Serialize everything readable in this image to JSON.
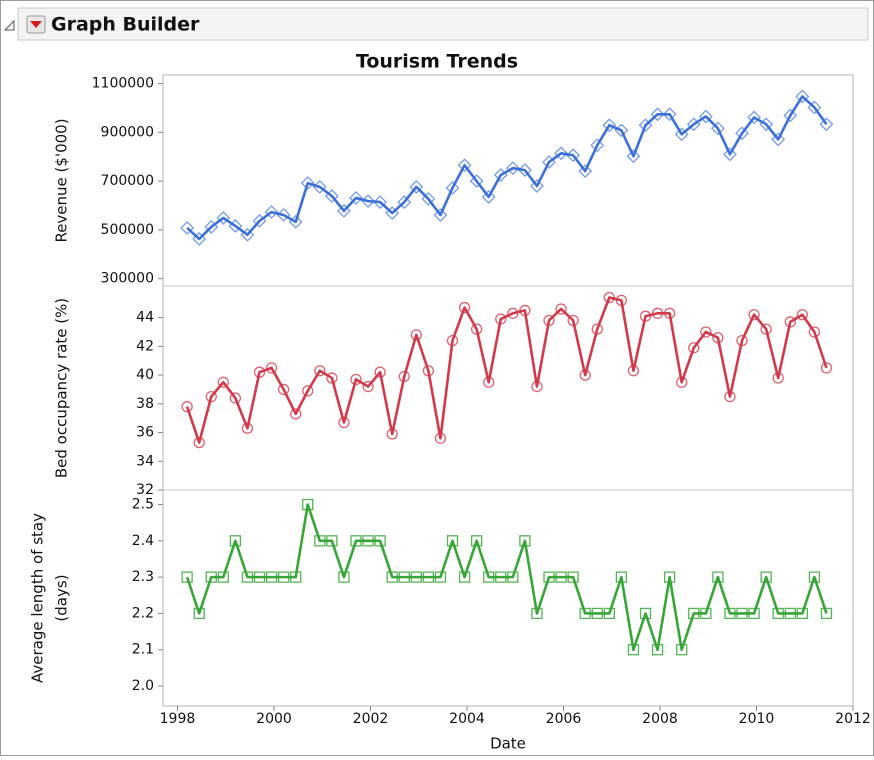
{
  "header": {
    "title": "Graph Builder"
  },
  "chart_data": {
    "type": "line",
    "title": "Tourism Trends",
    "xlabel": "Date",
    "x": [
      1998.2,
      1998.45,
      1998.7,
      1998.95,
      1999.2,
      1999.45,
      1999.7,
      1999.95,
      2000.2,
      2000.45,
      2000.7,
      2000.95,
      2001.2,
      2001.45,
      2001.7,
      2001.95,
      2002.2,
      2002.45,
      2002.7,
      2002.95,
      2003.2,
      2003.45,
      2003.7,
      2003.95,
      2004.2,
      2004.45,
      2004.7,
      2004.95,
      2005.2,
      2005.45,
      2005.7,
      2005.95,
      2006.2,
      2006.45,
      2006.7,
      2006.95,
      2007.2,
      2007.45,
      2007.7,
      2007.95,
      2008.2,
      2008.45,
      2008.7,
      2008.95,
      2009.2,
      2009.45,
      2009.7,
      2009.95,
      2010.2,
      2010.45,
      2010.7,
      2010.95,
      2011.2,
      2011.45
    ],
    "xlim": [
      1997.7,
      2012
    ],
    "xticks": [
      1998,
      2000,
      2002,
      2004,
      2006,
      2008,
      2010,
      2012
    ],
    "panels": [
      {
        "ylabel": [
          "Revenue ($'000)"
        ],
        "ylim": [
          270000,
          1135000
        ],
        "yticks": [
          300000,
          500000,
          700000,
          900000,
          1100000
        ],
        "series": [
          {
            "color": "#3b6fd9",
            "marker": "diamond",
            "values": [
              508000,
              463000,
              512000,
              549000,
              516000,
              480000,
              537000,
              573000,
              561000,
              533000,
              692000,
              676000,
              639000,
              578000,
              631000,
              618000,
              614000,
              569000,
              614000,
              676000,
              627000,
              561000,
              672000,
              765000,
              700000,
              635000,
              725000,
              753000,
              745000,
              680000,
              778000,
              814000,
              806000,
              741000,
              847000,
              929000,
              908000,
              802000,
              929000,
              974000,
              974000,
              892000,
              933000,
              965000,
              916000,
              810000,
              896000,
              961000,
              933000,
              871000,
              969000,
              1047000,
              1002000,
              933000
            ]
          }
        ]
      },
      {
        "ylabel": [
          "Bed occupancy rate (%)"
        ],
        "ylim": [
          32,
          46.2
        ],
        "yticks": [
          32,
          34,
          36,
          38,
          40,
          42,
          44
        ],
        "series": [
          {
            "color": "#d23a4c",
            "marker": "circle",
            "values": [
              37.8,
              35.3,
              38.5,
              39.5,
              38.4,
              36.3,
              40.2,
              40.5,
              39.0,
              37.3,
              38.9,
              40.3,
              39.8,
              36.7,
              39.7,
              39.2,
              40.2,
              35.9,
              39.9,
              42.8,
              40.3,
              35.6,
              42.4,
              44.7,
              43.2,
              39.5,
              43.9,
              44.3,
              44.5,
              39.2,
              43.8,
              44.6,
              43.8,
              40.0,
              43.2,
              45.4,
              45.2,
              40.3,
              44.1,
              44.3,
              44.3,
              39.5,
              41.9,
              43.0,
              42.6,
              38.5,
              42.4,
              44.2,
              43.2,
              39.8,
              43.7,
              44.2,
              43.0,
              40.5
            ]
          }
        ]
      },
      {
        "ylabel": [
          "Average length of stay",
          "(days)"
        ],
        "ylim": [
          1.945,
          2.54
        ],
        "yticks": [
          {
            "value": 2,
            "label": "2.0"
          },
          2.1,
          2.2,
          2.3,
          2.4,
          2.5
        ],
        "series": [
          {
            "color": "#37a636",
            "marker": "square",
            "values": [
              2.3,
              2.2,
              2.3,
              2.3,
              2.4,
              2.3,
              2.3,
              2.3,
              2.3,
              2.3,
              2.5,
              2.4,
              2.4,
              2.3,
              2.4,
              2.4,
              2.4,
              2.3,
              2.3,
              2.3,
              2.3,
              2.3,
              2.4,
              2.3,
              2.4,
              2.3,
              2.3,
              2.3,
              2.4,
              2.2,
              2.3,
              2.3,
              2.3,
              2.2,
              2.2,
              2.2,
              2.3,
              2.1,
              2.2,
              2.1,
              2.3,
              2.1,
              2.2,
              2.2,
              2.3,
              2.2,
              2.2,
              2.2,
              2.3,
              2.2,
              2.2,
              2.2,
              2.3,
              2.2
            ]
          }
        ]
      }
    ]
  }
}
